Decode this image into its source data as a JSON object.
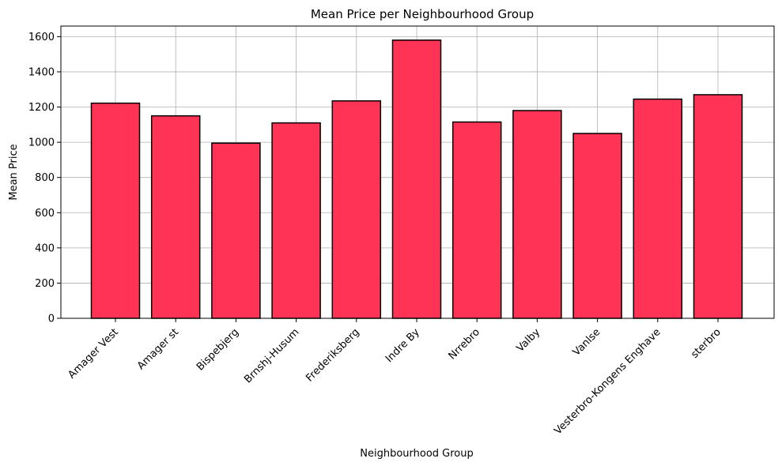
{
  "chart_data": {
    "type": "bar",
    "title": "Mean Price per Neighbourhood Group",
    "xlabel": "Neighbourhood Group",
    "ylabel": "Mean Price",
    "categories": [
      "Amager Vest",
      "Amager st",
      "Bispebjerg",
      "Brnshj-Husum",
      "Frederiksberg",
      "Indre By",
      "Nrrebro",
      "Valby",
      "Vanlse",
      "Vesterbro-Kongens Enghave",
      "sterbro"
    ],
    "values": [
      1222,
      1150,
      995,
      1110,
      1235,
      1580,
      1115,
      1180,
      1050,
      1245,
      1270
    ],
    "ylim": [
      0,
      1660
    ],
    "yticks": [
      0,
      200,
      400,
      600,
      800,
      1000,
      1200,
      1400,
      1600
    ],
    "grid": true,
    "bar_color": "#ff3355",
    "edge_color": "#000000",
    "grid_color": "#b0b0b0"
  }
}
